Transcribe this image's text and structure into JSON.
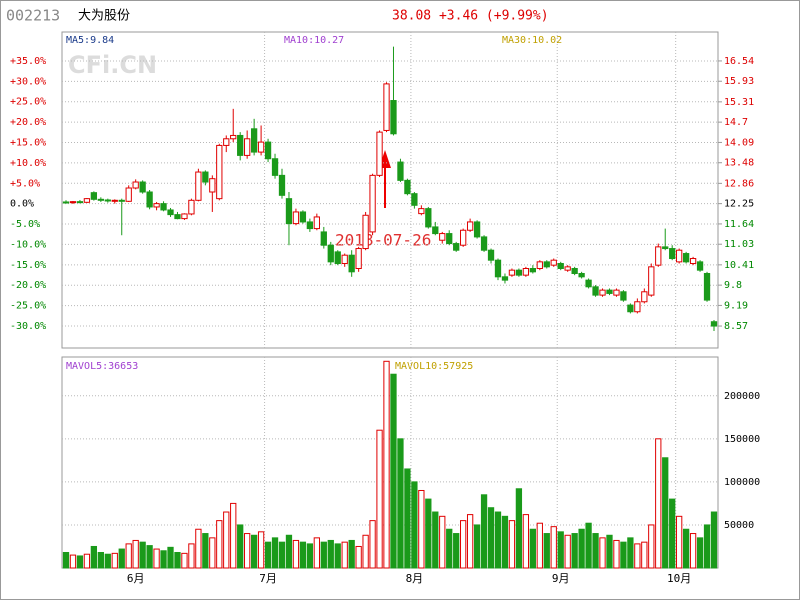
{
  "header": {
    "code": "002213",
    "name": "大为股份",
    "quote": "38.08 +3.46 (+9.99%)",
    "watermark": "CFi.CN"
  },
  "chart_data": [
    {
      "type": "candlestick",
      "indicators": [
        "MA5:9.84",
        "MA10:10.27",
        "MA30:10.02"
      ],
      "annotation": "2018-07-26",
      "categories": [
        null,
        null,
        null,
        null,
        null,
        null,
        null,
        null,
        null,
        null,
        "6月",
        null,
        null,
        null,
        null,
        null,
        null,
        null,
        null,
        null,
        null,
        null,
        null,
        null,
        null,
        null,
        null,
        null,
        null,
        "7月",
        null,
        null,
        null,
        null,
        null,
        null,
        null,
        null,
        null,
        null,
        null,
        null,
        null,
        null,
        null,
        null,
        null,
        null,
        null,
        null,
        "8月",
        null,
        null,
        null,
        null,
        null,
        null,
        null,
        null,
        null,
        null,
        null,
        null,
        null,
        null,
        null,
        null,
        null,
        null,
        null,
        null,
        "9月",
        null,
        null,
        null,
        null,
        null,
        null,
        null,
        null,
        null,
        null,
        null,
        null,
        null,
        null,
        null,
        null,
        "10月",
        null,
        null,
        null,
        null,
        null
      ],
      "open": [
        12.3,
        12.28,
        12.31,
        12.29,
        12.58,
        12.38,
        12.36,
        12.33,
        12.35,
        12.32,
        12.72,
        12.9,
        12.6,
        12.15,
        12.25,
        12.06,
        11.92,
        11.8,
        11.94,
        12.35,
        13.2,
        12.6,
        12.4,
        14.0,
        14.2,
        14.3,
        13.7,
        14.5,
        13.8,
        14.1,
        13.6,
        13.1,
        12.4,
        11.65,
        12.0,
        11.7,
        11.5,
        11.4,
        11.0,
        10.8,
        10.45,
        10.7,
        10.3,
        10.9,
        11.4,
        13.1,
        14.45,
        15.35,
        13.5,
        12.95,
        12.55,
        11.95,
        12.1,
        11.55,
        11.15,
        11.35,
        11.05,
        11.0,
        11.45,
        11.7,
        11.25,
        10.85,
        10.55,
        10.05,
        10.1,
        10.25,
        10.1,
        10.3,
        10.3,
        10.5,
        10.4,
        10.45,
        10.25,
        10.3,
        10.15,
        9.95,
        9.75,
        9.5,
        9.65,
        9.5,
        9.6,
        9.2,
        9.0,
        9.3,
        9.5,
        10.4,
        10.95,
        10.9,
        10.5,
        10.75,
        10.45,
        10.5,
        10.15,
        8.7
      ],
      "high": [
        12.35,
        12.33,
        12.36,
        12.42,
        12.62,
        12.44,
        12.4,
        12.38,
        12.4,
        12.8,
        12.98,
        12.95,
        12.66,
        12.3,
        12.32,
        12.12,
        12.0,
        11.96,
        12.4,
        13.3,
        13.25,
        13.1,
        14.05,
        14.3,
        15.1,
        14.4,
        14.45,
        14.8,
        14.6,
        14.2,
        13.75,
        13.3,
        12.6,
        12.1,
        12.05,
        11.8,
        11.95,
        11.55,
        11.1,
        10.85,
        10.75,
        10.85,
        10.95,
        12.0,
        13.15,
        14.45,
        15.9,
        16.97,
        13.6,
        13.0,
        12.6,
        12.2,
        12.15,
        11.7,
        11.4,
        11.45,
        11.1,
        11.5,
        11.8,
        11.75,
        11.3,
        10.9,
        10.6,
        10.15,
        10.3,
        10.3,
        10.35,
        10.4,
        10.55,
        10.55,
        10.6,
        10.5,
        10.4,
        10.35,
        10.2,
        10.0,
        9.8,
        9.7,
        9.7,
        9.7,
        9.65,
        9.25,
        9.4,
        9.7,
        10.45,
        11.05,
        11.5,
        11.0,
        10.9,
        10.8,
        10.65,
        10.55,
        10.2,
        8.75
      ],
      "low": [
        12.25,
        12.24,
        12.26,
        12.27,
        12.34,
        12.3,
        12.28,
        12.25,
        11.3,
        12.3,
        12.68,
        12.55,
        12.08,
        12.05,
        12.02,
        11.85,
        11.78,
        11.76,
        11.9,
        12.32,
        12.8,
        12.0,
        12.35,
        13.8,
        14.1,
        13.55,
        13.6,
        13.7,
        13.7,
        13.5,
        13.0,
        12.4,
        11.0,
        11.6,
        11.65,
        11.4,
        11.45,
        10.9,
        10.4,
        10.4,
        10.35,
        10.05,
        10.2,
        10.85,
        11.3,
        13.05,
        14.4,
        14.3,
        12.9,
        12.5,
        12.1,
        11.9,
        11.5,
        11.3,
        11.05,
        11.0,
        10.8,
        10.95,
        11.4,
        11.2,
        10.8,
        10.45,
        9.95,
        9.85,
        10.05,
        10.05,
        10.05,
        10.15,
        10.25,
        10.3,
        10.35,
        10.25,
        10.2,
        10.1,
        10.0,
        9.7,
        9.45,
        9.45,
        9.5,
        9.45,
        9.3,
        8.95,
        8.95,
        9.25,
        9.45,
        10.35,
        10.85,
        10.55,
        10.45,
        10.45,
        10.4,
        10.2,
        9.3,
        8.42
      ],
      "close": [
        12.28,
        12.31,
        12.29,
        12.4,
        12.38,
        12.36,
        12.33,
        12.35,
        12.32,
        12.72,
        12.9,
        12.6,
        12.15,
        12.25,
        12.06,
        11.92,
        11.8,
        11.94,
        12.35,
        13.2,
        12.9,
        13.0,
        14.0,
        14.2,
        14.3,
        13.7,
        14.2,
        13.8,
        14.1,
        13.6,
        13.1,
        12.5,
        11.65,
        12.0,
        11.7,
        11.5,
        11.85,
        11.0,
        10.5,
        10.45,
        10.7,
        10.2,
        10.9,
        11.9,
        13.1,
        14.4,
        15.85,
        14.35,
        12.95,
        12.55,
        12.2,
        12.1,
        11.55,
        11.35,
        11.35,
        11.05,
        10.85,
        11.45,
        11.7,
        11.25,
        10.85,
        10.55,
        10.05,
        9.95,
        10.25,
        10.1,
        10.3,
        10.2,
        10.5,
        10.35,
        10.55,
        10.3,
        10.35,
        10.15,
        10.05,
        9.75,
        9.5,
        9.65,
        9.55,
        9.65,
        9.35,
        9.0,
        9.3,
        9.6,
        10.35,
        10.95,
        10.9,
        10.6,
        10.85,
        10.5,
        10.6,
        10.25,
        9.35,
        8.57
      ],
      "ylim": [
        -35.4,
        42.1
      ],
      "yticks": [
        {
          "value": 35,
          "label": "+35.0%"
        },
        {
          "value": 30,
          "label": "+30.0%"
        },
        {
          "value": 25,
          "label": "+25.0%"
        },
        {
          "value": 20,
          "label": "+20.0%"
        },
        {
          "value": 15,
          "label": "+15.0%"
        },
        {
          "value": 10,
          "label": "+10.0%"
        },
        {
          "value": 5,
          "label": "+5.0%"
        },
        {
          "value": 0,
          "label": "0.0%"
        },
        {
          "value": -5,
          "label": "-5.0%"
        },
        {
          "value": -10,
          "label": "-10.0%"
        },
        {
          "value": -15,
          "label": "-15.0%"
        },
        {
          "value": -20,
          "label": "-20.0%"
        },
        {
          "value": -25,
          "label": "-25.0%"
        },
        {
          "value": -30,
          "label": "-30.0%"
        }
      ],
      "y2lim": [
        7.91,
        17.41
      ],
      "y2ticks": [
        16.54,
        15.93,
        15.31,
        14.7,
        14.09,
        13.48,
        12.86,
        12.25,
        11.64,
        11.03,
        10.41,
        9.8,
        9.19,
        8.57
      ],
      "up_color": "#e00000",
      "down_color": "#1a9a1a",
      "grid": true
    },
    {
      "type": "volume",
      "indicators": [
        "MAVOL5:36653",
        "MAVOL10:57925"
      ],
      "values": [
        18000,
        15000,
        14000,
        16000,
        25000,
        18000,
        16000,
        17000,
        22000,
        28000,
        32000,
        30000,
        26000,
        22000,
        20000,
        24000,
        18000,
        17000,
        28000,
        45000,
        40000,
        35000,
        55000,
        65000,
        75000,
        50000,
        40000,
        38000,
        42000,
        30000,
        35000,
        30000,
        38000,
        32000,
        30000,
        28000,
        35000,
        30000,
        32000,
        28000,
        30000,
        32000,
        25000,
        38000,
        55000,
        160000,
        240000,
        225000,
        150000,
        115000,
        100000,
        90000,
        80000,
        65000,
        60000,
        45000,
        40000,
        55000,
        62000,
        50000,
        85000,
        70000,
        65000,
        60000,
        55000,
        92000,
        62000,
        45000,
        52000,
        40000,
        48000,
        42000,
        38000,
        40000,
        45000,
        52000,
        40000,
        35000,
        38000,
        32000,
        30000,
        35000,
        28000,
        30000,
        50000,
        150000,
        128000,
        80000,
        60000,
        45000,
        40000,
        35000,
        50000,
        65000
      ],
      "ylim": [
        0,
        245000
      ],
      "yticks": [
        200000,
        150000,
        100000,
        50000
      ]
    }
  ]
}
